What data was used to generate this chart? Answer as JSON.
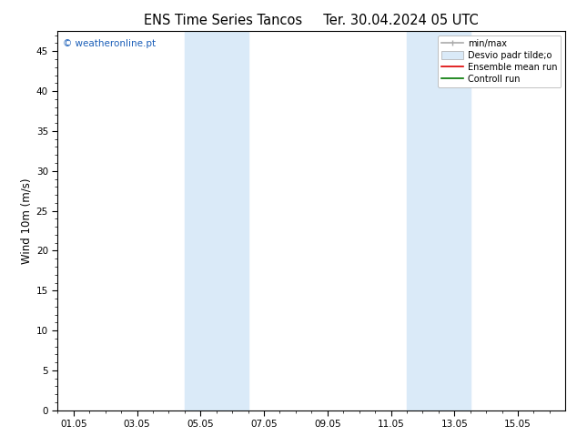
{
  "title": "ENS Time Series Tancos     Ter. 30.04.2024 05 UTC",
  "ylabel": "Wind 10m (m/s)",
  "ylim": [
    0,
    47.5
  ],
  "yticks": [
    0,
    5,
    10,
    15,
    20,
    25,
    30,
    35,
    40,
    45
  ],
  "xlim": [
    -0.5,
    15.5
  ],
  "xtick_positions": [
    0,
    2,
    4,
    6,
    8,
    10,
    12,
    14
  ],
  "xtick_labels": [
    "01.05",
    "03.05",
    "05.05",
    "07.05",
    "09.05",
    "11.05",
    "13.05",
    "15.05"
  ],
  "shaded_regions": [
    {
      "xstart": 3.5,
      "xend": 5.5,
      "color": "#daeaf8"
    },
    {
      "xstart": 10.5,
      "xend": 12.5,
      "color": "#daeaf8"
    }
  ],
  "watermark": "© weatheronline.pt",
  "watermark_color": "#1a5eb8",
  "legend_items": [
    {
      "label": "min/max",
      "color": "#aaaaaa",
      "lw": 1.2
    },
    {
      "label": "Desvio padr tilde;o",
      "color": "#daeaf8",
      "lw": 8
    },
    {
      "label": "Ensemble mean run",
      "color": "#dd0000",
      "lw": 1.2
    },
    {
      "label": "Controll run",
      "color": "#007700",
      "lw": 1.2
    }
  ],
  "background_color": "#ffffff",
  "axes_background": "#ffffff",
  "title_fontsize": 10.5,
  "tick_fontsize": 7.5,
  "ylabel_fontsize": 8.5,
  "legend_fontsize": 7
}
